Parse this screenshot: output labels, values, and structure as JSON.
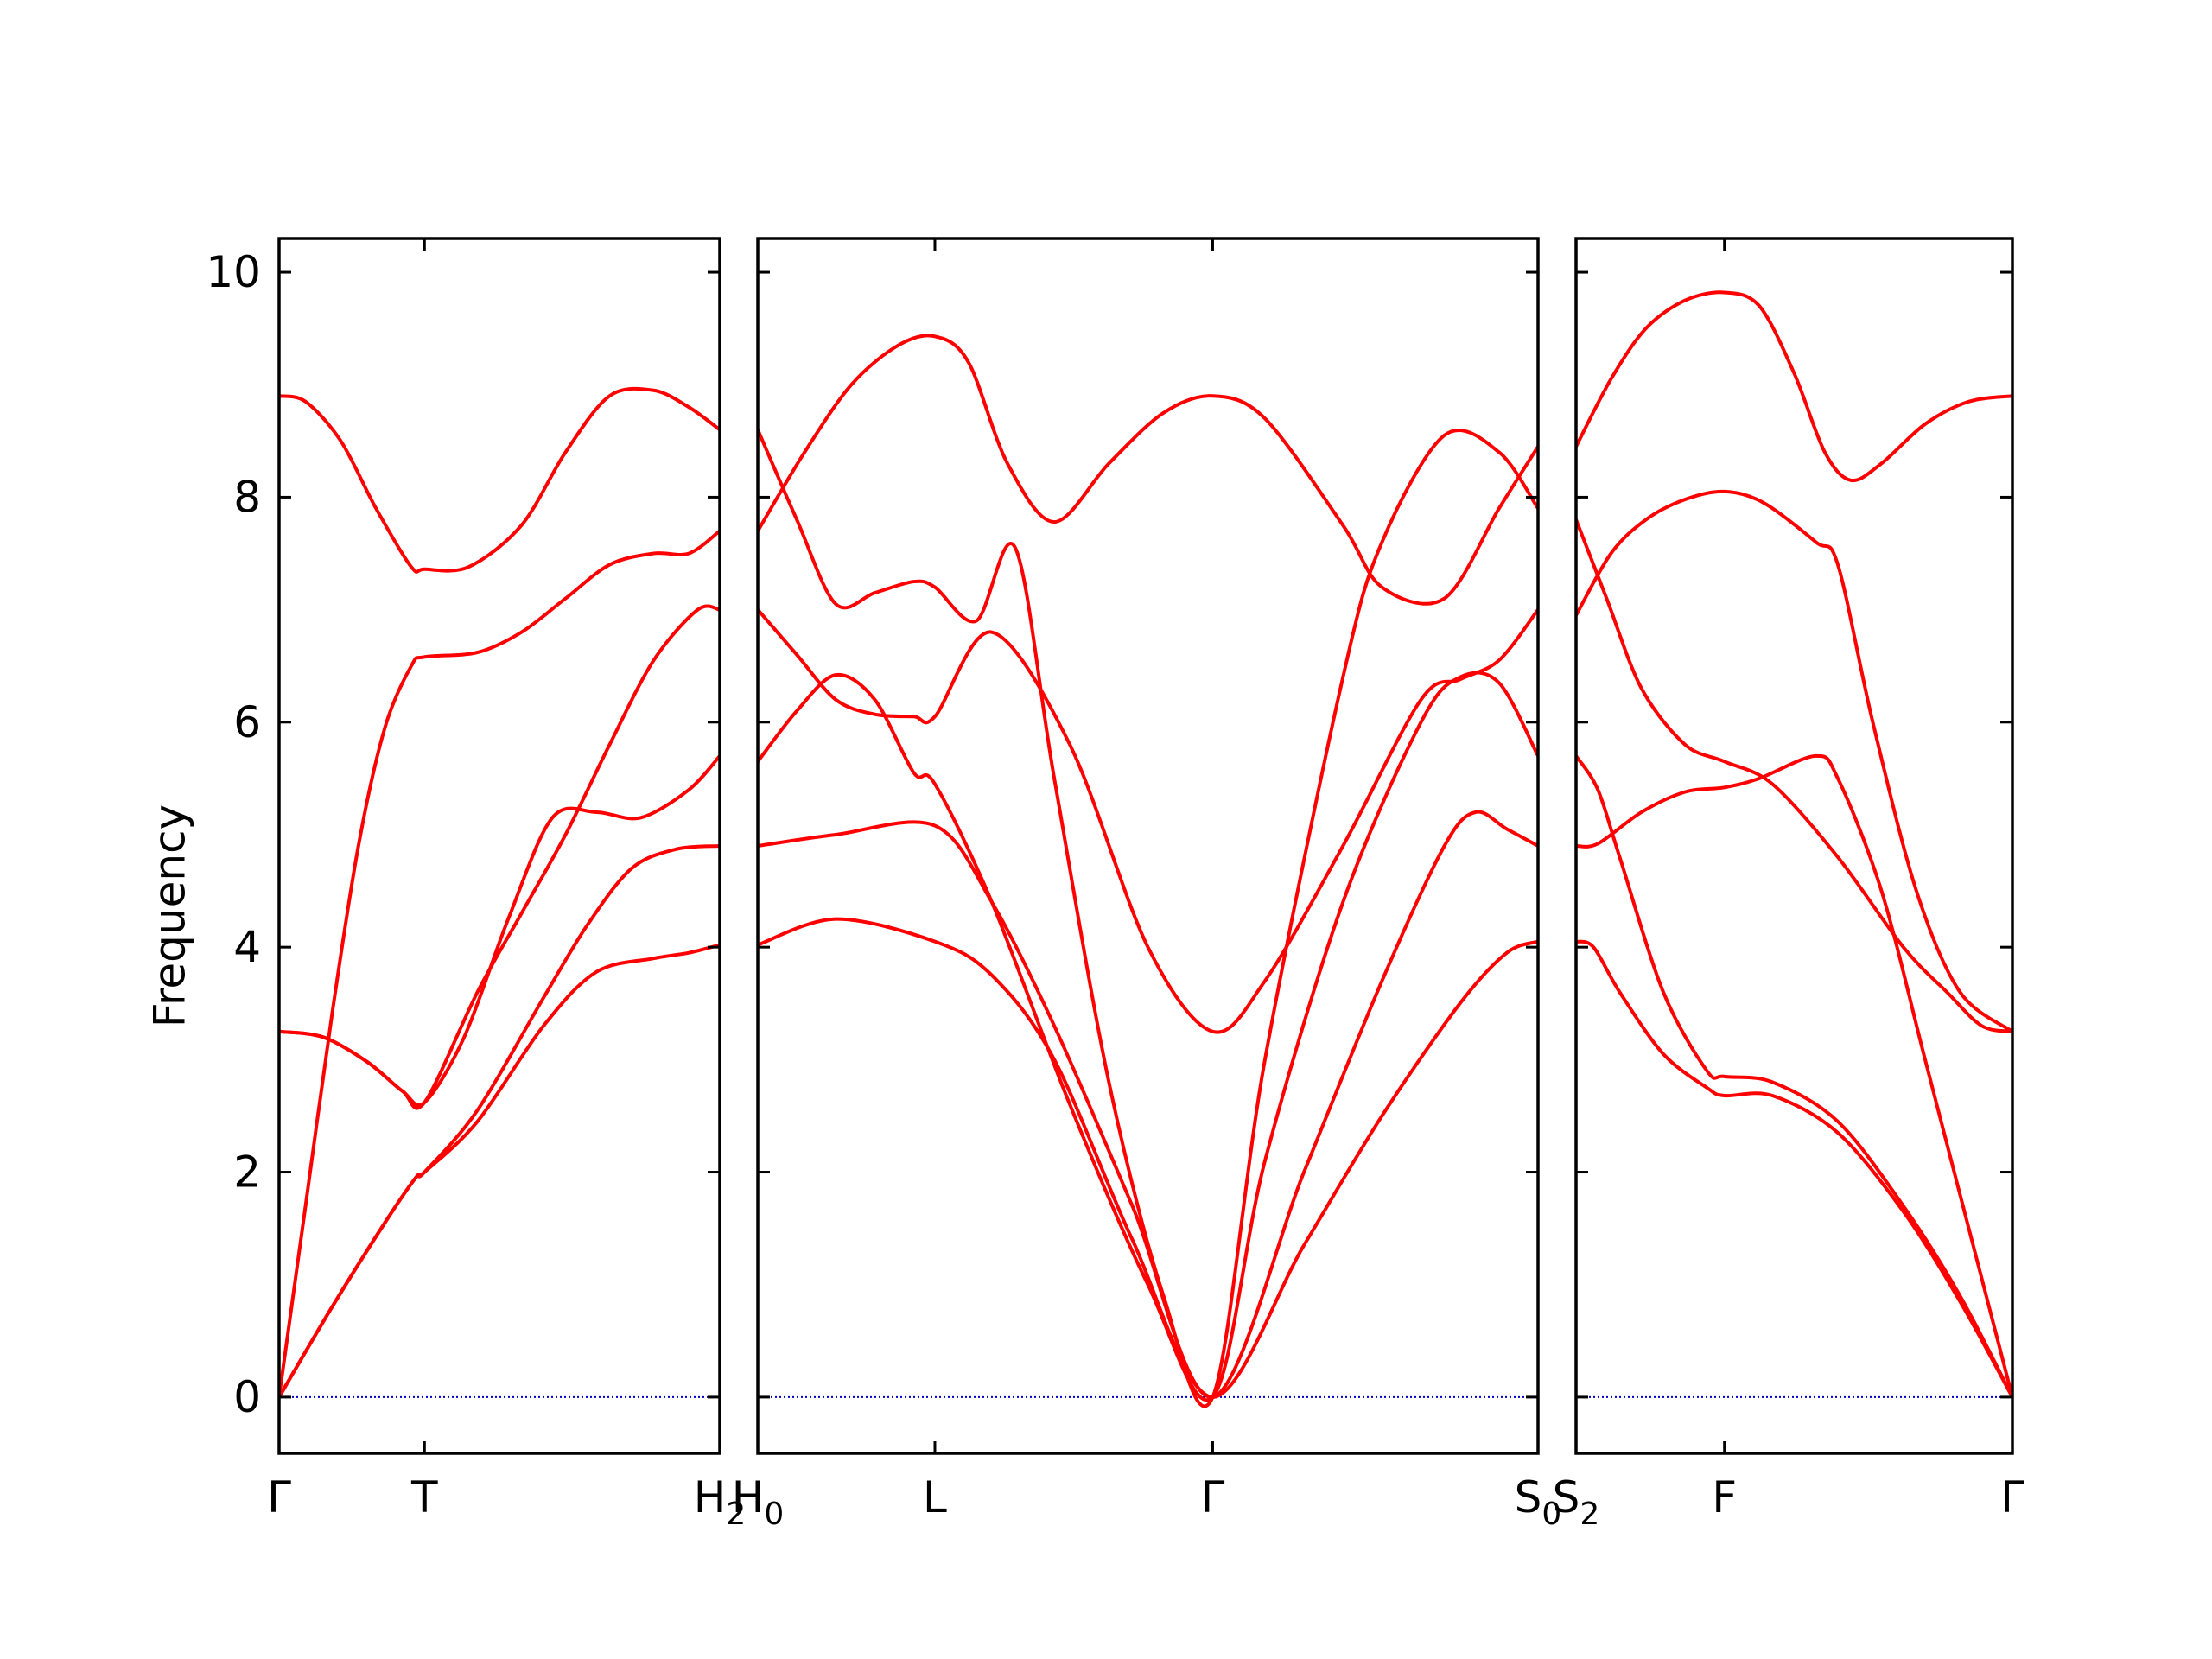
{
  "chart_data": {
    "type": "line",
    "ylabel": "Frequency",
    "ylim": [
      -0.5,
      10.3
    ],
    "y_ticks": [
      "0",
      "2",
      "4",
      "6",
      "8",
      "10"
    ],
    "colors": {
      "band": "#ff0000",
      "zero_line": "#0000cc",
      "axes": "#000000"
    },
    "grid": false,
    "panels": [
      {
        "name": "panel-1",
        "xlim": [
          0,
          1.0
        ],
        "ticks": [
          {
            "x": 0.0,
            "label": "Γ",
            "sub": ""
          },
          {
            "x": 0.33,
            "label": "T",
            "sub": ""
          },
          {
            "x": 1.0,
            "label": "H",
            "sub": "2"
          }
        ],
        "bands": [
          {
            "x": [
              0,
              0.12,
              0.24,
              0.31,
              0.33,
              0.45,
              0.6,
              0.72,
              0.85,
              0.93,
              1.0
            ],
            "y": [
              0,
              0.8,
              1.55,
              1.95,
              2.0,
              2.45,
              3.3,
              3.78,
              3.9,
              3.95,
              4.02
            ]
          },
          {
            "x": [
              0,
              0.12,
              0.24,
              0.31,
              0.33,
              0.45,
              0.6,
              0.7,
              0.8,
              0.9,
              1.0
            ],
            "y": [
              0,
              0.8,
              1.55,
              1.95,
              2.0,
              2.55,
              3.55,
              4.2,
              4.7,
              4.87,
              4.9
            ]
          },
          {
            "x": [
              0,
              0.1,
              0.2,
              0.28,
              0.33,
              0.42,
              0.52,
              0.62,
              0.72,
              0.82,
              0.93,
              1.0
            ],
            "y": [
              3.25,
              3.2,
              2.98,
              2.72,
              2.62,
              3.2,
              4.25,
              5.15,
              5.2,
              5.15,
              5.4,
              5.7
            ]
          },
          {
            "x": [
              0,
              0.1,
              0.2,
              0.28,
              0.33,
              0.45,
              0.55,
              0.65,
              0.75,
              0.85,
              0.95,
              1.0
            ],
            "y": [
              3.25,
              3.2,
              2.98,
              2.72,
              2.62,
              3.6,
              4.3,
              5.0,
              5.8,
              6.55,
              7.0,
              7.0
            ]
          },
          {
            "x": [
              0,
              0.06,
              0.12,
              0.18,
              0.24,
              0.3,
              0.33,
              0.45,
              0.55,
              0.65,
              0.75,
              0.85,
              0.93,
              1.0
            ],
            "y": [
              0,
              1.7,
              3.4,
              4.9,
              5.95,
              6.5,
              6.58,
              6.62,
              6.8,
              7.1,
              7.4,
              7.5,
              7.5,
              7.7
            ]
          },
          {
            "x": [
              0,
              0.06,
              0.14,
              0.22,
              0.3,
              0.33,
              0.43,
              0.55,
              0.65,
              0.75,
              0.85,
              0.93,
              1.0
            ],
            "y": [
              8.9,
              8.85,
              8.5,
              7.9,
              7.38,
              7.36,
              7.38,
              7.75,
              8.4,
              8.9,
              8.95,
              8.8,
              8.6
            ]
          }
        ]
      },
      {
        "name": "panel-2",
        "xlim": [
          0,
          1.0
        ],
        "ticks": [
          {
            "x": 0.0,
            "label": "H",
            "sub": "0"
          },
          {
            "x": 0.227,
            "label": "L",
            "sub": ""
          },
          {
            "x": 0.583,
            "label": "Γ",
            "sub": ""
          },
          {
            "x": 1.0,
            "label": "S",
            "sub": "0"
          }
        ],
        "bands": [
          {
            "x": [
              0,
              0.1,
              0.227,
              0.3,
              0.38,
              0.48,
              0.583,
              0.7,
              0.8,
              0.9,
              0.96,
              1.0
            ],
            "y": [
              4.02,
              4.25,
              4.05,
              3.75,
              3.0,
              1.4,
              0,
              1.35,
              2.5,
              3.5,
              3.95,
              4.05
            ]
          },
          {
            "x": [
              0,
              0.1,
              0.227,
              0.3,
              0.38,
              0.48,
              0.583,
              0.7,
              0.8,
              0.88,
              0.92,
              0.96,
              1.0
            ],
            "y": [
              4.9,
              5.0,
              5.08,
              4.4,
              3.3,
              1.7,
              0,
              2.0,
              3.7,
              4.9,
              5.2,
              5.05,
              4.9
            ]
          },
          {
            "x": [
              0,
              0.05,
              0.1,
              0.15,
              0.2,
              0.227,
              0.3,
              0.4,
              0.5,
              0.583,
              0.65,
              0.75,
              0.85,
              0.9,
              0.95,
              1.0
            ],
            "y": [
              5.65,
              6.1,
              6.42,
              6.2,
              5.55,
              5.45,
              4.4,
              2.6,
              1.0,
              0,
              2.1,
              4.4,
              6.0,
              6.4,
              6.35,
              5.7
            ]
          },
          {
            "x": [
              0,
              0.05,
              0.1,
              0.15,
              0.2,
              0.227,
              0.3,
              0.4,
              0.5,
              0.583,
              0.65,
              0.75,
              0.85,
              0.9,
              0.95,
              1.0
            ],
            "y": [
              7.0,
              6.6,
              6.2,
              6.07,
              6.05,
              6.05,
              6.8,
              5.8,
              4.0,
              3.25,
              3.7,
              4.9,
              6.2,
              6.38,
              6.55,
              7.0
            ]
          },
          {
            "x": [
              0,
              0.05,
              0.1,
              0.15,
              0.2,
              0.227,
              0.28,
              0.33,
              0.38,
              0.45,
              0.52,
              0.583,
              0.65,
              0.75,
              0.8,
              0.88,
              0.95,
              1.0
            ],
            "y": [
              8.6,
              7.8,
              7.05,
              7.15,
              7.25,
              7.2,
              6.9,
              7.55,
              5.5,
              2.8,
              0.9,
              0,
              3.0,
              6.4,
              7.6,
              8.55,
              8.4,
              7.9
            ]
          },
          {
            "x": [
              0,
              0.06,
              0.12,
              0.18,
              0.227,
              0.27,
              0.32,
              0.38,
              0.45,
              0.52,
              0.583,
              0.65,
              0.75,
              0.8,
              0.88,
              0.95,
              1.0
            ],
            "y": [
              7.7,
              8.4,
              9.0,
              9.35,
              9.43,
              9.2,
              8.3,
              7.78,
              8.3,
              8.75,
              8.9,
              8.7,
              7.75,
              7.2,
              7.1,
              7.9,
              8.45
            ]
          }
        ]
      },
      {
        "name": "panel-3",
        "xlim": [
          0,
          1.0
        ],
        "ticks": [
          {
            "x": 0.0,
            "label": "S",
            "sub": "2"
          },
          {
            "x": 0.34,
            "label": "F",
            "sub": ""
          },
          {
            "x": 1.0,
            "label": "Γ",
            "sub": ""
          }
        ],
        "bands": [
          {
            "x": [
              0,
              0.04,
              0.1,
              0.2,
              0.3,
              0.34,
              0.45,
              0.6,
              0.75,
              0.88,
              1.0
            ],
            "y": [
              4.05,
              4.0,
              3.6,
              3.05,
              2.75,
              2.68,
              2.68,
              2.35,
              1.65,
              0.85,
              0
            ]
          },
          {
            "x": [
              0,
              0.05,
              0.1,
              0.2,
              0.3,
              0.34,
              0.45,
              0.6,
              0.75,
              0.88,
              1.0
            ],
            "y": [
              5.7,
              5.4,
              4.8,
              3.6,
              2.9,
              2.85,
              2.8,
              2.45,
              1.7,
              0.9,
              0
            ]
          },
          {
            "x": [
              0,
              0.05,
              0.15,
              0.25,
              0.34,
              0.42,
              0.55,
              0.6,
              0.7,
              0.8,
              0.9,
              1.0
            ],
            "y": [
              4.9,
              4.92,
              5.2,
              5.38,
              5.42,
              5.5,
              5.7,
              5.5,
              4.5,
              3.0,
              1.5,
              0
            ]
          },
          {
            "x": [
              0,
              0.07,
              0.15,
              0.25,
              0.34,
              0.45,
              0.6,
              0.75,
              0.85,
              0.93,
              1.0
            ],
            "y": [
              7.8,
              7.1,
              6.3,
              5.8,
              5.65,
              5.45,
              4.8,
              4.0,
              3.6,
              3.3,
              3.25
            ]
          },
          {
            "x": [
              0,
              0.08,
              0.16,
              0.25,
              0.34,
              0.43,
              0.55,
              0.6,
              0.68,
              0.78,
              0.88,
              1.0
            ],
            "y": [
              6.95,
              7.5,
              7.8,
              7.98,
              8.05,
              7.95,
              7.6,
              7.4,
              6.0,
              4.5,
              3.6,
              3.25
            ]
          },
          {
            "x": [
              0,
              0.08,
              0.16,
              0.25,
              0.34,
              0.42,
              0.5,
              0.57,
              0.63,
              0.7,
              0.8,
              0.9,
              1.0
            ],
            "y": [
              8.45,
              9.05,
              9.5,
              9.75,
              9.82,
              9.7,
              9.1,
              8.4,
              8.15,
              8.3,
              8.65,
              8.85,
              8.9
            ]
          }
        ]
      }
    ]
  }
}
